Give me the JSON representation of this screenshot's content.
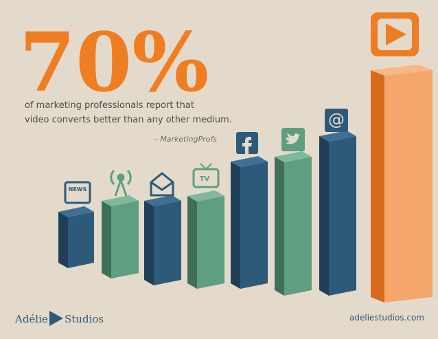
{
  "headline": {
    "stat": "70%",
    "line1": "of marketing professionals report that",
    "line2": "video converts better than any other medium.",
    "source": "– MarketingProfs"
  },
  "icons": {
    "news": "NEWS",
    "tv": "TV"
  },
  "footer": {
    "brand_left": "Adélie",
    "brand_right": "Studios",
    "url": "adeliestudios.com"
  }
}
